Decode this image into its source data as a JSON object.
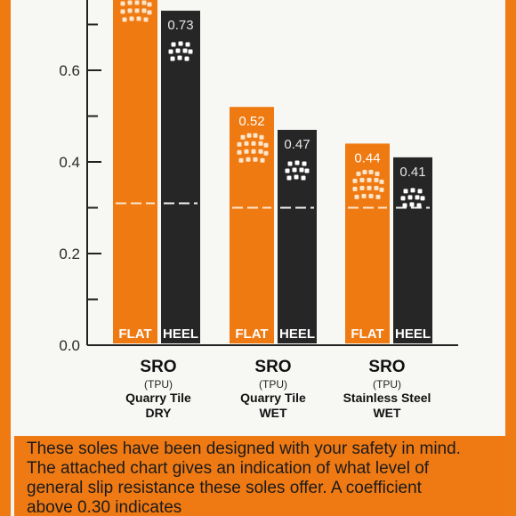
{
  "chart_data": {
    "type": "bar",
    "ylim": [
      0,
      0.8
    ],
    "yticks": [
      "0.0",
      "0.2",
      "0.4",
      "0.6"
    ],
    "groups": [
      {
        "line1": "SRO",
        "line2": "(TPU)",
        "line3": "Quarry Tile",
        "line4": "DRY",
        "bars": [
          {
            "label": "FLAT",
            "value": 0.76,
            "value_label": ""
          },
          {
            "label": "HEEL",
            "value": 0.73,
            "value_label": "0.73"
          }
        ]
      },
      {
        "line1": "SRO",
        "line2": "(TPU)",
        "line3": "Quarry Tile",
        "line4": "WET",
        "bars": [
          {
            "label": "FLAT",
            "value": 0.52,
            "value_label": "0.52"
          },
          {
            "label": "HEEL",
            "value": 0.47,
            "value_label": "0.47"
          }
        ]
      },
      {
        "line1": "SRO",
        "line2": "(TPU)",
        "line3": "Stainless Steel",
        "line4": "WET",
        "bars": [
          {
            "label": "FLAT",
            "value": 0.44,
            "value_label": "0.44"
          },
          {
            "label": "HEEL",
            "value": 0.41,
            "value_label": "0.41"
          }
        ]
      }
    ],
    "threshold": 0.3,
    "colors": {
      "flat": "#f07a12",
      "heel": "#262626",
      "axis": "#222222"
    }
  },
  "caption": {
    "text": "These soles have been designed with your safety in mind.\nThe attached chart gives an indication of what level of\ngeneral slip resistance these soles offer. A coefficient\nabove 0.30 indicates"
  }
}
